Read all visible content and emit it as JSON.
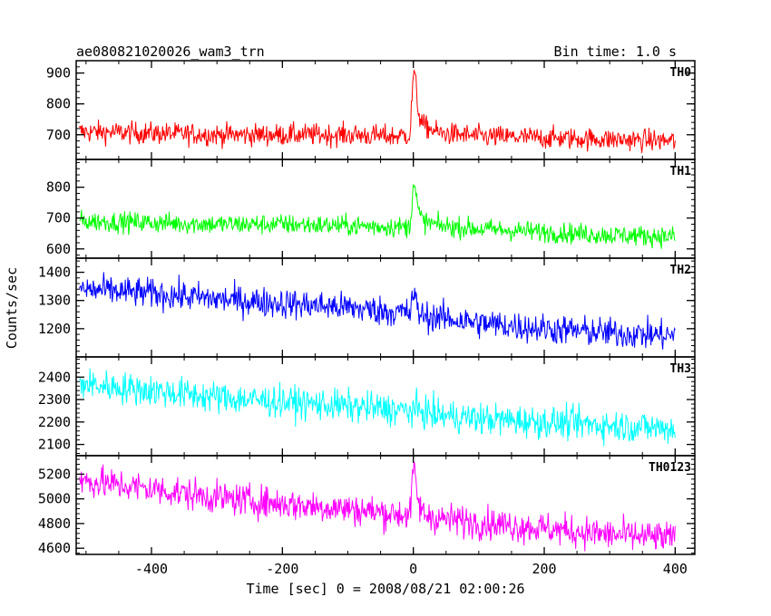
{
  "chart_data": {
    "type": "line",
    "title": "ae080821020026_wam3_trn",
    "subtitle": "Bin time: 1.0 s",
    "xlabel": "Time [sec] 0 = 2008/08/21 02:00:26",
    "ylabel": "Counts/sec",
    "xlim": [
      -515,
      430
    ],
    "xticks": [
      -400,
      -200,
      0,
      200,
      400
    ],
    "grid": false,
    "panels": [
      {
        "name": "TH0",
        "color": "#ff0000",
        "ylim": [
          620,
          940
        ],
        "yticks": [
          700,
          800,
          900
        ],
        "x": [
          -510,
          -400,
          -300,
          -200,
          -100,
          -30,
          -5,
          0,
          3,
          8,
          15,
          40,
          100,
          200,
          300,
          400
        ],
        "y": [
          710,
          705,
          700,
          700,
          700,
          695,
          700,
          900,
          880,
          770,
          730,
          705,
          695,
          690,
          685,
          680
        ],
        "noise": 30
      },
      {
        "name": "TH1",
        "color": "#00ff00",
        "ylim": [
          570,
          890
        ],
        "yticks": [
          600,
          700,
          800
        ],
        "x": [
          -510,
          -400,
          -300,
          -200,
          -100,
          -30,
          -5,
          0,
          3,
          8,
          15,
          40,
          100,
          200,
          300,
          400
        ],
        "y": [
          690,
          685,
          680,
          680,
          675,
          672,
          670,
          820,
          790,
          720,
          690,
          675,
          665,
          655,
          645,
          640
        ],
        "noise": 28
      },
      {
        "name": "TH2",
        "color": "#0000ff",
        "ylim": [
          1100,
          1450
        ],
        "yticks": [
          1200,
          1300,
          1400
        ],
        "x": [
          -510,
          -400,
          -300,
          -200,
          -100,
          -30,
          -5,
          0,
          3,
          8,
          15,
          40,
          100,
          200,
          300,
          400
        ],
        "y": [
          1340,
          1325,
          1305,
          1290,
          1275,
          1260,
          1255,
          1330,
          1300,
          1260,
          1245,
          1240,
          1220,
          1200,
          1185,
          1175
        ],
        "noise": 45
      },
      {
        "name": "TH3",
        "color": "#00ffff",
        "ylim": [
          2050,
          2490
        ],
        "yticks": [
          2100,
          2200,
          2300,
          2400
        ],
        "x": [
          -510,
          -400,
          -300,
          -200,
          -100,
          -30,
          -5,
          0,
          40,
          100,
          200,
          300,
          400
        ],
        "y": [
          2370,
          2340,
          2310,
          2290,
          2270,
          2255,
          2250,
          2255,
          2230,
          2215,
          2200,
          2185,
          2170
        ],
        "noise": 60
      },
      {
        "name": "TH0123",
        "color": "#ff00ff",
        "ylim": [
          4550,
          5350
        ],
        "yticks": [
          4600,
          4800,
          5000,
          5200
        ],
        "x": [
          -510,
          -400,
          -300,
          -200,
          -100,
          -30,
          -5,
          0,
          3,
          8,
          15,
          40,
          100,
          200,
          300,
          400
        ],
        "y": [
          5150,
          5080,
          5010,
          4960,
          4920,
          4880,
          4870,
          5250,
          5150,
          4960,
          4880,
          4840,
          4810,
          4760,
          4710,
          4680
        ],
        "noise": 110
      }
    ]
  }
}
